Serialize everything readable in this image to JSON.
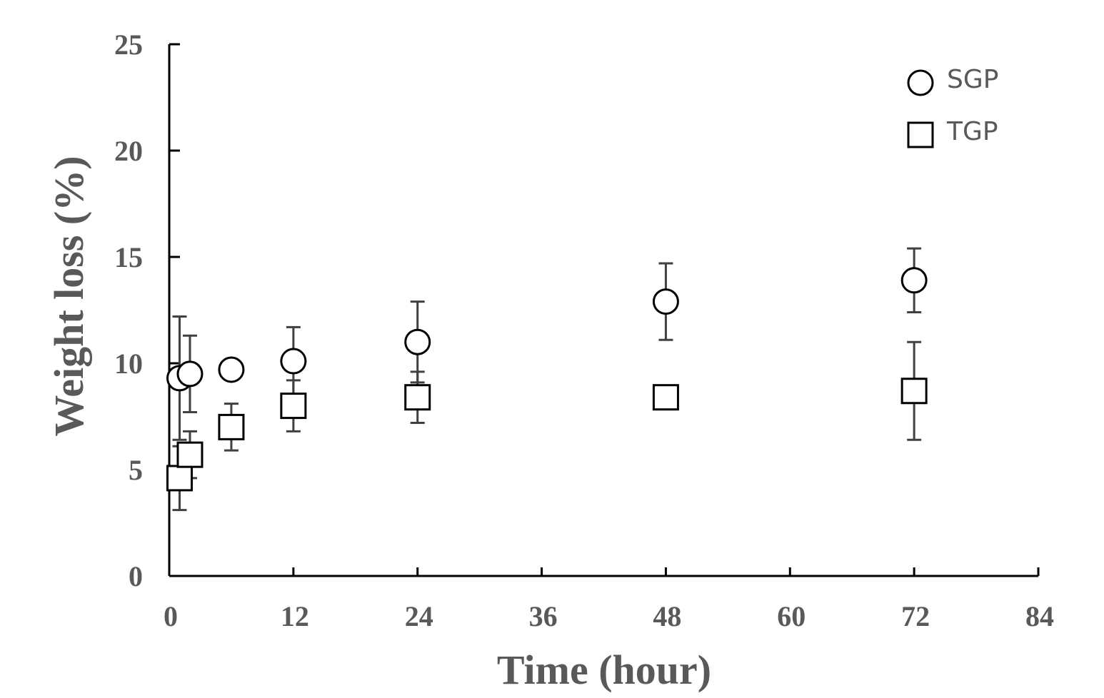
{
  "chart_data": {
    "type": "scatter",
    "title": "",
    "xlabel": "Time (hour)",
    "ylabel": "Weight loss (%)",
    "xlim": [
      0,
      84
    ],
    "ylim": [
      0,
      25
    ],
    "xticks": [
      0,
      12,
      24,
      36,
      48,
      60,
      72,
      84
    ],
    "yticks": [
      0,
      5,
      10,
      15,
      20,
      25
    ],
    "xtick_labels": [
      "0",
      "12",
      "24",
      "36",
      "48",
      "60",
      "72",
      "84"
    ],
    "ytick_labels": [
      "0",
      "5",
      "10",
      "15",
      "20",
      "25"
    ],
    "grid": false,
    "legend_position": "top-right",
    "series": [
      {
        "name": "SGP",
        "marker": "circle",
        "x": [
          1,
          2,
          6,
          12,
          24,
          48,
          72
        ],
        "y": [
          9.3,
          9.5,
          9.7,
          10.1,
          11.0,
          12.9,
          13.9
        ],
        "error": [
          2.9,
          1.8,
          0.4,
          1.6,
          1.9,
          1.8,
          1.5
        ]
      },
      {
        "name": "TGP",
        "marker": "square",
        "x": [
          1,
          2,
          6,
          12,
          24,
          48,
          72
        ],
        "y": [
          4.6,
          5.7,
          7.0,
          8.0,
          8.4,
          8.4,
          8.7
        ],
        "error": [
          1.5,
          1.1,
          1.1,
          1.2,
          1.2,
          0.4,
          2.3
        ]
      }
    ],
    "colors": {
      "axis": "#000000",
      "text": "#595959",
      "errorbar": "#404040",
      "marker_stroke": "#000000",
      "marker_fill": "#ffffff"
    }
  }
}
